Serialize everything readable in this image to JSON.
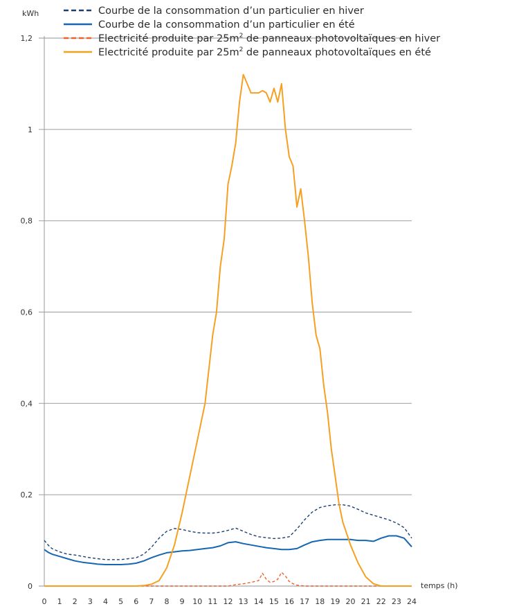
{
  "chart_data": {
    "type": "line",
    "y_unit_label": "kWh",
    "x_axis_label": "temps (h)",
    "ylim": [
      0,
      1.2
    ],
    "xlim": [
      0,
      24
    ],
    "y_ticks": [
      {
        "value": 0,
        "label": "0"
      },
      {
        "value": 0.2,
        "label": "0,2"
      },
      {
        "value": 0.4,
        "label": "0,4"
      },
      {
        "value": 0.6,
        "label": "0,6"
      },
      {
        "value": 0.8,
        "label": "0,8"
      },
      {
        "value": 1,
        "label": "1"
      },
      {
        "value": 1.2,
        "label": "1,2"
      }
    ],
    "x_ticks": [
      "0",
      "1",
      "2",
      "3",
      "4",
      "5",
      "6",
      "7",
      "8",
      "9",
      "10",
      "11",
      "12",
      "13",
      "14",
      "15",
      "16",
      "17",
      "18",
      "19",
      "20",
      "21",
      "22",
      "23",
      "24"
    ],
    "grid": "horizontal",
    "legend_position": "top",
    "series": [
      {
        "name_parts": [
          "Courbe de la consommation d’un particulier en hiver"
        ],
        "color": "#1b3f73",
        "dash": true,
        "x": [
          0,
          0.25,
          0.5,
          1,
          1.5,
          2,
          2.5,
          3,
          3.5,
          4,
          4.5,
          5,
          5.5,
          6,
          6.5,
          7,
          7.5,
          8,
          8.5,
          9,
          9.5,
          10,
          10.5,
          11,
          11.5,
          12,
          12.5,
          13,
          13.5,
          14,
          14.5,
          15,
          15.5,
          16,
          16.5,
          17,
          17.5,
          18,
          18.5,
          19,
          19.5,
          20,
          20.5,
          21,
          21.5,
          22,
          22.5,
          23,
          23.5,
          24
        ],
        "y": [
          0.1,
          0.09,
          0.082,
          0.075,
          0.07,
          0.068,
          0.065,
          0.062,
          0.06,
          0.058,
          0.058,
          0.058,
          0.06,
          0.062,
          0.07,
          0.085,
          0.105,
          0.12,
          0.126,
          0.124,
          0.12,
          0.117,
          0.116,
          0.116,
          0.118,
          0.122,
          0.127,
          0.12,
          0.113,
          0.108,
          0.106,
          0.104,
          0.105,
          0.108,
          0.125,
          0.145,
          0.162,
          0.172,
          0.176,
          0.178,
          0.178,
          0.175,
          0.168,
          0.16,
          0.155,
          0.15,
          0.145,
          0.138,
          0.128,
          0.105
        ]
      },
      {
        "name_parts": [
          "Courbe de la consommation d’un particulier en été"
        ],
        "color": "#1565b0",
        "dash": false,
        "x": [
          0,
          0.25,
          0.5,
          1,
          1.5,
          2,
          2.5,
          3,
          3.5,
          4,
          4.5,
          5,
          5.5,
          6,
          6.5,
          7,
          7.5,
          8,
          8.5,
          9,
          9.5,
          10,
          10.5,
          11,
          11.5,
          12,
          12.5,
          13,
          13.5,
          14,
          14.5,
          15,
          15.5,
          16,
          16.5,
          17,
          17.5,
          18,
          18.5,
          19,
          19.5,
          20,
          20.5,
          21,
          21.5,
          22,
          22.5,
          23,
          23.5,
          24
        ],
        "y": [
          0.08,
          0.074,
          0.07,
          0.065,
          0.06,
          0.055,
          0.052,
          0.05,
          0.048,
          0.047,
          0.047,
          0.047,
          0.048,
          0.05,
          0.055,
          0.062,
          0.068,
          0.073,
          0.075,
          0.077,
          0.078,
          0.08,
          0.082,
          0.084,
          0.088,
          0.095,
          0.097,
          0.093,
          0.09,
          0.087,
          0.084,
          0.082,
          0.08,
          0.08,
          0.082,
          0.09,
          0.097,
          0.1,
          0.102,
          0.102,
          0.102,
          0.102,
          0.1,
          0.1,
          0.098,
          0.105,
          0.11,
          0.11,
          0.105,
          0.086
        ]
      },
      {
        "name_parts": [
          "Electricité produite par 25m",
          "2",
          " de panneaux photovoltaïques en hiver"
        ],
        "color": "#f0602a",
        "dash": true,
        "x": [
          0,
          1,
          2,
          3,
          4,
          5,
          6,
          7,
          8,
          9,
          10,
          11,
          12,
          12.5,
          13,
          13.5,
          14,
          14.25,
          14.5,
          14.75,
          15,
          15.25,
          15.5,
          15.75,
          16,
          16.25,
          16.5,
          17,
          18,
          19,
          20,
          21,
          22,
          23,
          24
        ],
        "y": [
          0,
          0,
          0,
          0,
          0,
          0,
          0,
          0,
          0,
          0,
          0,
          0,
          0,
          0.003,
          0.005,
          0.008,
          0.012,
          0.028,
          0.015,
          0.008,
          0.01,
          0.015,
          0.03,
          0.022,
          0.01,
          0.005,
          0.002,
          0,
          0,
          0,
          0,
          0,
          0,
          0,
          0
        ]
      },
      {
        "name_parts": [
          "Electricité produite par 25m",
          "2",
          " de panneaux photovoltaïques en été"
        ],
        "color": "#f5a020",
        "dash": false,
        "x": [
          0,
          1,
          2,
          3,
          4,
          5,
          6,
          6.5,
          7,
          7.5,
          8,
          8.5,
          9,
          9.5,
          10,
          10.5,
          11,
          11.25,
          11.5,
          11.75,
          12,
          12.25,
          12.5,
          12.75,
          13,
          13.25,
          13.5,
          13.75,
          14,
          14.25,
          14.5,
          14.75,
          15,
          15.25,
          15.5,
          15.75,
          16,
          16.25,
          16.5,
          16.75,
          17,
          17.25,
          17.5,
          17.75,
          18,
          18.25,
          18.5,
          18.75,
          19,
          19.25,
          19.5,
          20,
          20.5,
          21,
          21.5,
          22,
          22.5,
          23,
          24
        ],
        "y": [
          0,
          0,
          0,
          0,
          0,
          0,
          0,
          0.001,
          0.004,
          0.012,
          0.04,
          0.09,
          0.16,
          0.24,
          0.32,
          0.4,
          0.55,
          0.6,
          0.7,
          0.76,
          0.88,
          0.92,
          0.97,
          1.06,
          1.12,
          1.1,
          1.08,
          1.08,
          1.08,
          1.085,
          1.08,
          1.06,
          1.09,
          1.06,
          1.1,
          1.0,
          0.94,
          0.92,
          0.83,
          0.87,
          0.8,
          0.72,
          0.62,
          0.55,
          0.52,
          0.44,
          0.38,
          0.3,
          0.24,
          0.18,
          0.14,
          0.09,
          0.05,
          0.02,
          0.005,
          0,
          0,
          0,
          0
        ]
      }
    ]
  }
}
